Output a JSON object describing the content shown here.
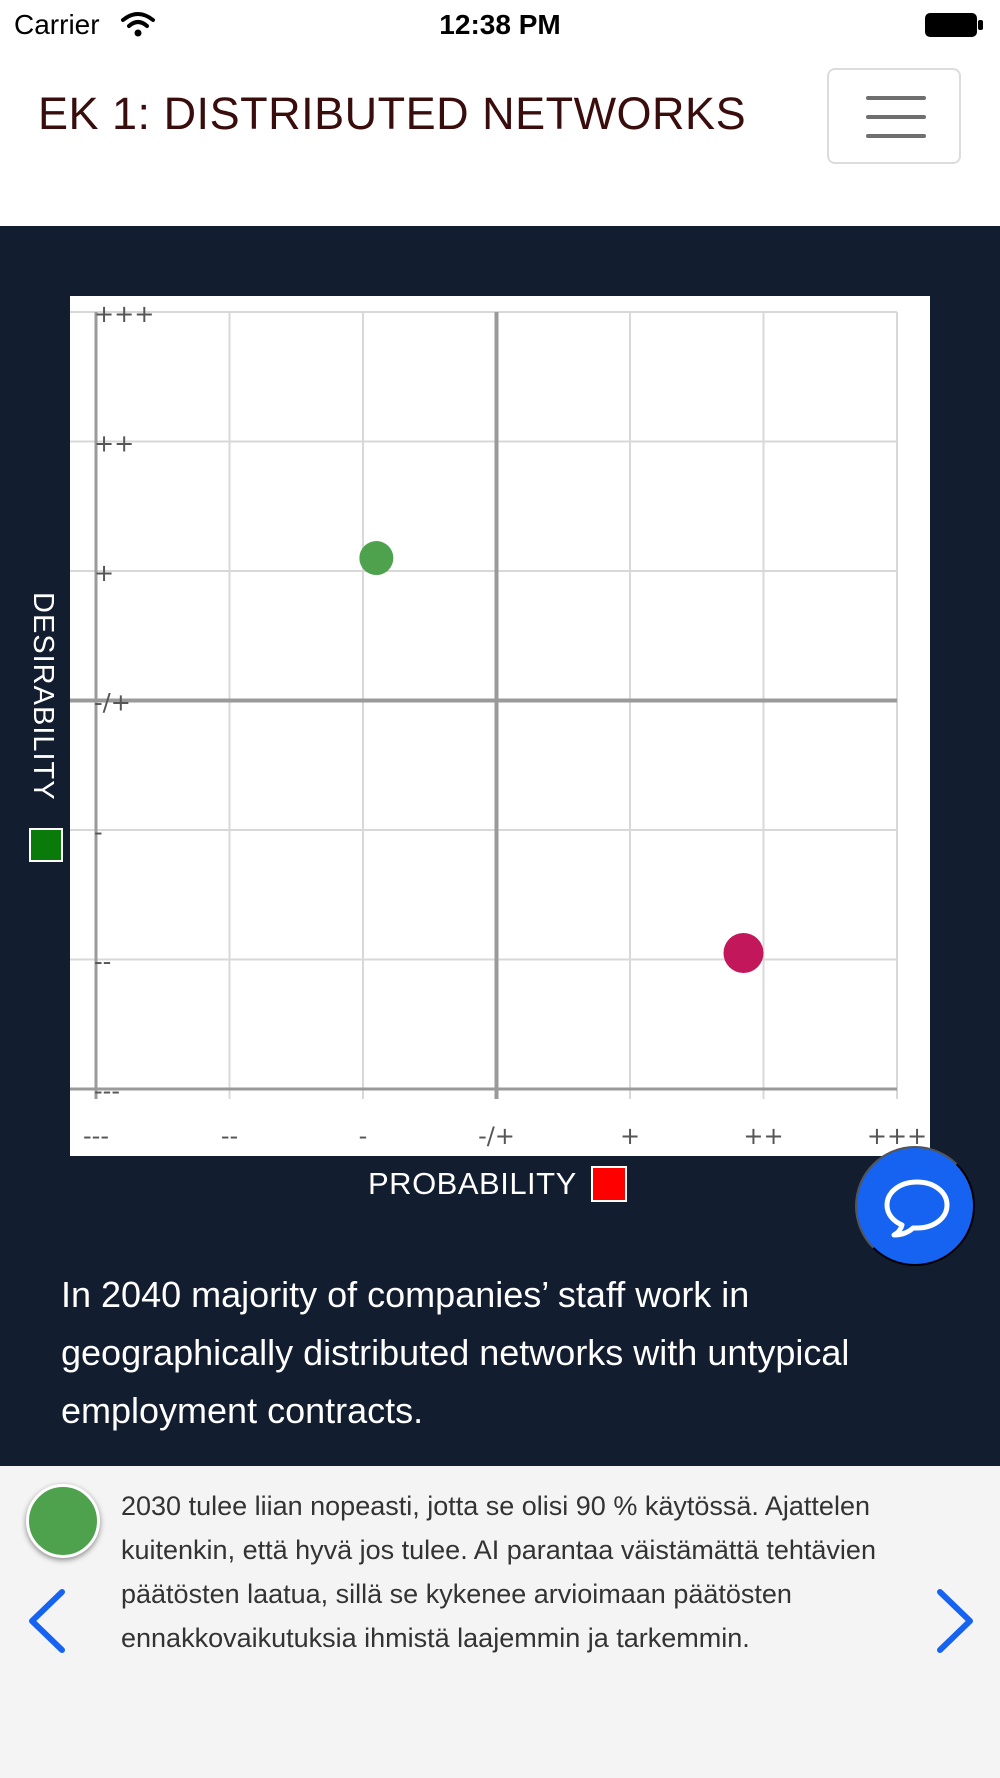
{
  "status_bar": {
    "carrier": "Carrier",
    "time": "12:38 PM"
  },
  "header": {
    "title": "EK 1: DISTRIBUTED NETWORKS"
  },
  "chart_data": {
    "type": "scatter",
    "xlabel": "PROBABILITY",
    "ylabel": "DESIRABILITY",
    "x_ticks": [
      "---",
      "--",
      "-",
      "-/+",
      "+",
      "++",
      "+++"
    ],
    "y_ticks": [
      "+++",
      "++",
      "+",
      "-/+",
      "-",
      "--",
      "---"
    ],
    "xlim": [
      -3,
      3
    ],
    "ylim": [
      -3,
      3
    ],
    "grid": true,
    "xlabel_swatch_color": "#ff0000",
    "ylabel_swatch_color": "#0a7a0a",
    "points": [
      {
        "x": -0.9,
        "y": 1.1,
        "color": "#4ea24e"
      },
      {
        "x": 1.85,
        "y": -1.95,
        "color": "#c2185b"
      }
    ]
  },
  "statement": "In 2040 majority of companies’ staff work in geographically distributed networks with untypical employment contracts.",
  "comment": {
    "avatar_color": "#4ea24e",
    "text": "2030 tulee liian nopeasti, jotta se olisi 90 % käytössä. Ajattelen kuitenkin, että hyvä jos tulee. AI parantaa väistämättä tehtävien päätösten laatua, sillä se kykenee arvioimaan päätösten ennakkovaikutuksia ihmistä laajemmin ja tarkemmin."
  },
  "icons": {
    "wifi": "wifi-icon",
    "battery": "battery-icon",
    "menu": "hamburger-menu-icon",
    "chat": "chat-bubble-icon",
    "prev": "chevron-left-icon",
    "next": "chevron-right-icon"
  },
  "colors": {
    "dark_bg": "#121d30",
    "accent_blue": "#1563f0",
    "title": "#3a0d0d"
  }
}
